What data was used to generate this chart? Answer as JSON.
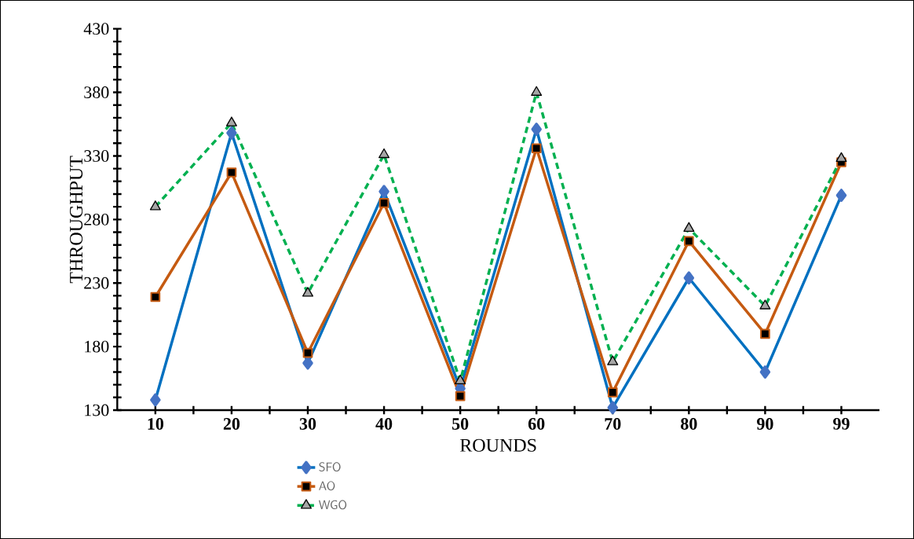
{
  "chart_data": {
    "type": "line",
    "xlabel": "ROUNDS",
    "ylabel": "THROUGHPUT",
    "categories": [
      "10",
      "20",
      "30",
      "40",
      "50",
      "60",
      "70",
      "80",
      "90",
      "99"
    ],
    "ylim": [
      130,
      430
    ],
    "yticks": [
      130,
      180,
      230,
      280,
      330,
      380,
      430
    ],
    "legend": "bottom",
    "grid": false,
    "series": [
      {
        "name": "SFO",
        "color": "#0070c0",
        "marker": "diamond",
        "line_style": "solid",
        "values": [
          138,
          348,
          167,
          302,
          147,
          351,
          132,
          234,
          160,
          299
        ]
      },
      {
        "name": "AO",
        "color": "#c55a11",
        "marker": "square",
        "line_style": "solid",
        "values": [
          219,
          317,
          175,
          293,
          141,
          336,
          144,
          263,
          190,
          325
        ]
      },
      {
        "name": "WGO",
        "color": "#00b050",
        "marker": "triangle",
        "line_style": "dashed",
        "values": [
          290,
          356,
          222,
          331,
          153,
          380,
          168,
          273,
          212,
          328
        ]
      }
    ]
  }
}
